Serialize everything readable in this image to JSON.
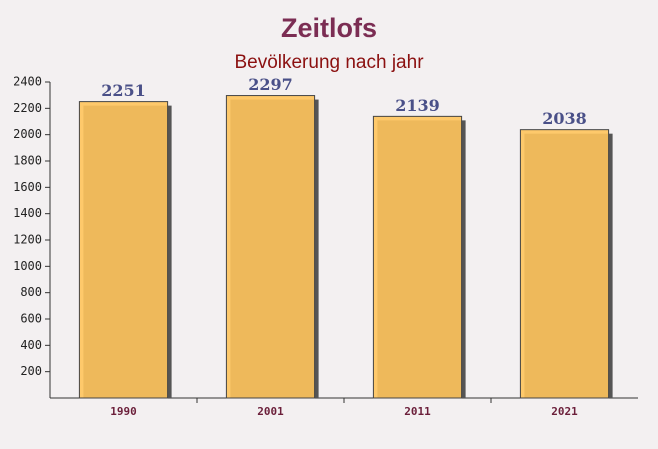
{
  "chart_data": {
    "type": "bar",
    "title": "Zeitlofs",
    "subtitle": "Bevölkerung nach jahr",
    "categories": [
      "1990",
      "2001",
      "2011",
      "2021"
    ],
    "values": [
      2251,
      2297,
      2139,
      2038
    ],
    "color": "#ffc45c",
    "ylim": [
      0,
      2400
    ],
    "yticks": [
      200,
      400,
      600,
      800,
      1000,
      1200,
      1400,
      1600,
      1800,
      2000,
      2200,
      2400
    ]
  }
}
